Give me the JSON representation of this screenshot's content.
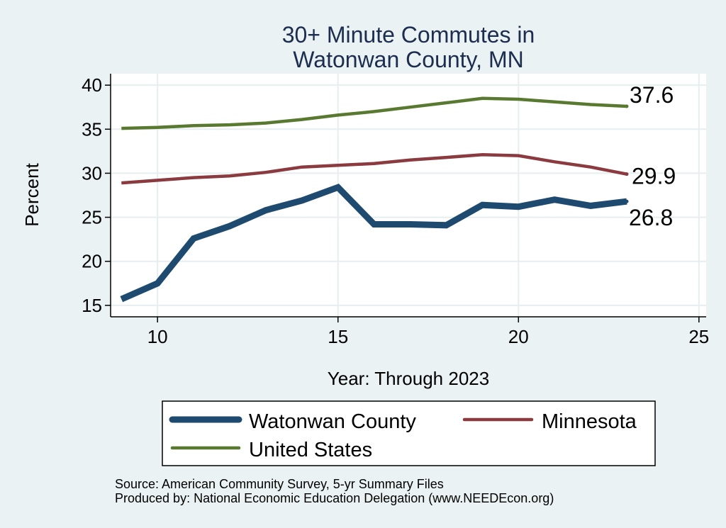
{
  "chart_data": {
    "type": "line",
    "title_lines": [
      "30+ Minute Commutes in",
      "Watonwan County, MN"
    ],
    "xlabel": "Year: Through 2023",
    "ylabel": "Percent",
    "xlim": [
      8.7,
      25.2
    ],
    "ylim": [
      13.7,
      41.3
    ],
    "xticks": [
      10,
      15,
      20,
      25
    ],
    "yticks": [
      15,
      20,
      25,
      30,
      35,
      40
    ],
    "grid": true,
    "x": [
      9,
      10,
      11,
      12,
      13,
      14,
      15,
      16,
      17,
      18,
      19,
      20,
      21,
      22,
      23
    ],
    "series": [
      {
        "name": "Watonwan County",
        "color": "#1d4a6e",
        "values": [
          15.7,
          17.5,
          22.6,
          24.0,
          25.8,
          26.9,
          28.4,
          24.2,
          24.2,
          24.1,
          26.4,
          26.2,
          27.0,
          26.3,
          26.8
        ],
        "end_label": "26.8",
        "end_label_position": "below"
      },
      {
        "name": "Minnesota",
        "color": "#8b3a3f",
        "values": [
          28.9,
          29.2,
          29.5,
          29.7,
          30.1,
          30.7,
          30.9,
          31.1,
          31.5,
          31.8,
          32.1,
          32.0,
          31.3,
          30.7,
          29.9
        ],
        "end_label": "29.9",
        "end_label_position": "right"
      },
      {
        "name": "United States",
        "color": "#58792f",
        "values": [
          35.1,
          35.2,
          35.4,
          35.5,
          35.7,
          36.1,
          36.6,
          37.0,
          37.5,
          38.0,
          38.5,
          38.4,
          38.1,
          37.8,
          37.6
        ],
        "end_label": "37.6",
        "end_label_position": "above-right"
      }
    ],
    "legend": {
      "placement": "bottom",
      "entries": [
        "Watonwan County",
        "Minnesota",
        "United States"
      ]
    }
  },
  "notes": {
    "source": "Source: American Community Survey, 5-yr Summary Files",
    "produced_by": "Produced by: National Economic Education Delegation (www.NEEDEcon.org)"
  },
  "colors": {
    "background": "#eaf2f3",
    "plot_background": "#ffffff",
    "grid": "#e6eeef",
    "title": "#1c2d4f"
  }
}
